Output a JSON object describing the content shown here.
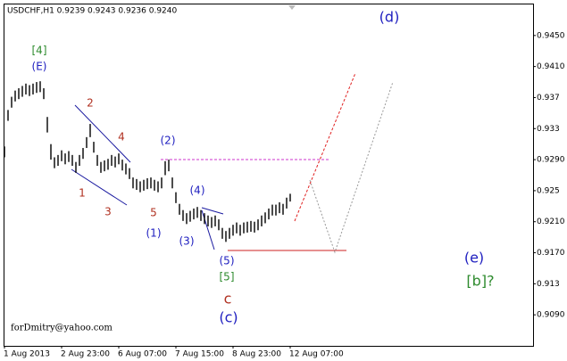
{
  "chart_data": {
    "type": "range-bar",
    "header": "USDCHF,H1  0.9239 0.9243 0.9236 0.9240",
    "watermark": "forDmitry@yahoo.com",
    "color": "#000000",
    "categories": [
      "1 Aug 2013",
      null,
      null,
      null,
      null,
      null,
      null,
      null,
      null,
      null,
      null,
      null,
      null,
      null,
      null,
      null,
      "2 Aug 23:00",
      null,
      null,
      null,
      null,
      null,
      null,
      null,
      null,
      null,
      null,
      null,
      null,
      null,
      null,
      null,
      "6 Aug 07:00",
      null,
      null,
      null,
      null,
      null,
      null,
      null,
      null,
      null,
      null,
      null,
      null,
      null,
      null,
      null,
      "7 Aug 15:00",
      null,
      null,
      null,
      null,
      null,
      null,
      null,
      null,
      null,
      null,
      null,
      null,
      null,
      null,
      null,
      "8 Aug 23:00",
      null,
      null,
      null,
      null,
      null,
      null,
      null,
      null,
      null,
      null,
      null,
      null,
      null,
      null,
      null,
      "12 Aug 07:00"
    ],
    "series": [
      {
        "name": "high",
        "values": [
          0.9307,
          0.9354,
          0.9371,
          0.9379,
          0.9382,
          0.9385,
          0.9388,
          0.9386,
          0.9388,
          0.939,
          0.9391,
          0.9382,
          0.9345,
          0.931,
          0.9293,
          0.9296,
          0.9302,
          0.9298,
          0.9301,
          0.9296,
          0.9287,
          0.9296,
          0.9305,
          0.9319,
          0.9336,
          0.9313,
          0.9296,
          0.9287,
          0.9289,
          0.9291,
          0.9296,
          0.9294,
          0.9298,
          0.929,
          0.9285,
          0.9279,
          0.9267,
          0.9265,
          0.9262,
          0.9264,
          0.9266,
          0.9267,
          0.9264,
          0.9262,
          0.9267,
          0.9288,
          0.929,
          0.9267,
          0.9248,
          0.9233,
          0.9225,
          0.9221,
          0.9224,
          0.9227,
          0.9229,
          0.9225,
          0.9221,
          0.9218,
          0.9216,
          0.9218,
          0.9213,
          0.9202,
          0.9198,
          0.9202,
          0.9206,
          0.9209,
          0.9206,
          0.9209,
          0.921,
          0.9211,
          0.921,
          0.9213,
          0.9218,
          0.9222,
          0.9227,
          0.9232,
          0.9232,
          0.9235,
          0.9233,
          0.9241,
          0.9246
        ]
      },
      {
        "name": "low",
        "values": [
          0.9293,
          0.934,
          0.9357,
          0.9365,
          0.9368,
          0.9371,
          0.9374,
          0.9372,
          0.9374,
          0.9376,
          0.9377,
          0.9368,
          0.9325,
          0.929,
          0.9279,
          0.9282,
          0.9288,
          0.9284,
          0.9287,
          0.9282,
          0.9273,
          0.9282,
          0.9291,
          0.9305,
          0.9319,
          0.9299,
          0.9282,
          0.9273,
          0.9275,
          0.9277,
          0.9282,
          0.928,
          0.9284,
          0.9276,
          0.9271,
          0.9265,
          0.9253,
          0.9251,
          0.9248,
          0.925,
          0.9252,
          0.9253,
          0.925,
          0.9248,
          0.9253,
          0.927,
          0.9275,
          0.9253,
          0.9234,
          0.9219,
          0.9211,
          0.9207,
          0.921,
          0.9213,
          0.9215,
          0.9211,
          0.9207,
          0.9204,
          0.9202,
          0.9204,
          0.9199,
          0.9188,
          0.9184,
          0.9188,
          0.9192,
          0.9195,
          0.9192,
          0.9195,
          0.9196,
          0.9197,
          0.9196,
          0.9199,
          0.9204,
          0.9208,
          0.9213,
          0.9218,
          0.9218,
          0.9221,
          0.9219,
          0.9227,
          0.9236
        ]
      }
    ],
    "ylim": [
      0.905,
      0.949
    ],
    "yticks": [
      {
        "value": 0.945,
        "label": "0.9450"
      },
      {
        "value": 0.941,
        "label": "0.9410"
      },
      0.937,
      0.933,
      {
        "value": 0.929,
        "label": "0.9290"
      },
      0.925,
      {
        "value": 0.921,
        "label": "0.9210"
      },
      {
        "value": 0.917,
        "label": "0.9170"
      },
      0.913,
      {
        "value": 0.909,
        "label": "0.9090"
      }
    ],
    "annotations": [
      {
        "text": "[4]",
        "color": "#2e8b2e"
      },
      {
        "text": "(E)",
        "color": "#2020c0"
      },
      {
        "text": "2",
        "color": "#b03020"
      },
      {
        "text": "4",
        "color": "#b03020"
      },
      {
        "text": "(2)",
        "color": "#2020c0"
      },
      {
        "text": "1",
        "color": "#b03020"
      },
      {
        "text": "3",
        "color": "#b03020"
      },
      {
        "text": "5",
        "color": "#b03020"
      },
      {
        "text": "(1)",
        "color": "#2020c0"
      },
      {
        "text": "(4)",
        "color": "#2020c0"
      },
      {
        "text": "(3)",
        "color": "#2020c0"
      },
      {
        "text": "(5)",
        "color": "#2020c0"
      },
      {
        "text": "[5]",
        "color": "#2e8b2e"
      },
      {
        "text": "c",
        "color": "#b03020"
      },
      {
        "text": "(c)",
        "color": "#2020c0"
      },
      {
        "text": "(d)",
        "color": "#2020c0"
      },
      {
        "text": "(e)",
        "color": "#2020c0"
      },
      {
        "text": "[b]?",
        "color": "#2e8b2e"
      }
    ]
  }
}
